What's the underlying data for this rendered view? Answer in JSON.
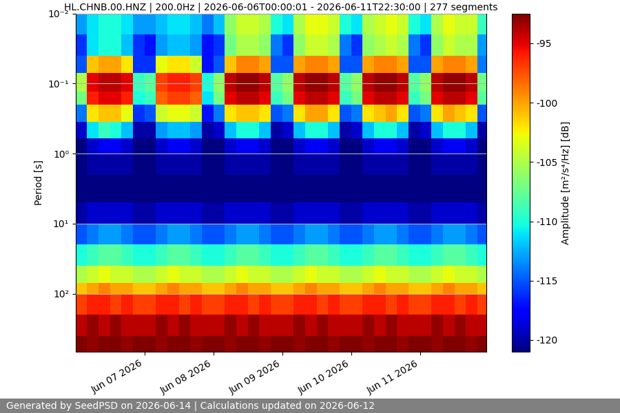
{
  "chart_data": {
    "type": "heatmap",
    "title": "HL.CHNB.00.HNZ | 200.0Hz | 2026-06-06T00:00:01 - 2026-06-11T22:30:00 | 277 segments",
    "y_label": "Period [s]",
    "footer": "Generated by SeedPSD on 2026-06-14 | Calculations updated on 2026-06-12",
    "log": "y",
    "grid": true,
    "xlim": [
      "2026-06-06T00:00",
      "2026-06-11T23:00"
    ],
    "xticks": [
      {
        "value": "2026-06-07T00:00",
        "label": "Jun 07 2026"
      },
      {
        "value": "2026-06-08T00:00",
        "label": "Jun 08 2026"
      },
      {
        "value": "2026-06-09T00:00",
        "label": "Jun 09 2026"
      },
      {
        "value": "2026-06-10T00:00",
        "label": "Jun 10 2026"
      },
      {
        "value": "2026-06-11T00:00",
        "label": "Jun 11 2026"
      }
    ],
    "ylim": [
      680,
      0.01
    ],
    "yticks": [
      {
        "value": 0.01,
        "label": "10⁻²"
      },
      {
        "value": 0.1,
        "label": "10⁻¹"
      },
      {
        "value": 1,
        "label": "10⁰"
      },
      {
        "value": 10,
        "label": "10¹"
      },
      {
        "value": 100,
        "label": "10²"
      }
    ],
    "x_edges": [
      "2026-06-06T00:00",
      "2026-06-06T04:00",
      "2026-06-06T08:00",
      "2026-06-06T12:00",
      "2026-06-06T16:00",
      "2026-06-06T20:00",
      "2026-06-07T00:00",
      "2026-06-07T04:00",
      "2026-06-07T08:00",
      "2026-06-07T12:00",
      "2026-06-07T16:00",
      "2026-06-07T20:00",
      "2026-06-08T00:00",
      "2026-06-08T04:00",
      "2026-06-08T08:00",
      "2026-06-08T12:00",
      "2026-06-08T16:00",
      "2026-06-08T20:00",
      "2026-06-09T00:00",
      "2026-06-09T04:00",
      "2026-06-09T08:00",
      "2026-06-09T12:00",
      "2026-06-09T16:00",
      "2026-06-09T20:00",
      "2026-06-10T00:00",
      "2026-06-10T04:00",
      "2026-06-10T08:00",
      "2026-06-10T12:00",
      "2026-06-10T16:00",
      "2026-06-10T20:00",
      "2026-06-11T00:00",
      "2026-06-11T04:00",
      "2026-06-11T08:00",
      "2026-06-11T12:00",
      "2026-06-11T16:00",
      "2026-06-11T20:00",
      "2026-06-12T00:00"
    ],
    "y_edges": [
      0.01,
      0.02,
      0.04,
      0.07,
      0.13,
      0.2,
      0.35,
      0.6,
      1,
      2,
      5,
      10,
      20,
      40,
      70,
      100,
      200,
      400,
      700
    ],
    "cells": [
      [
        -113,
        -111,
        -110,
        -110,
        -111,
        -113,
        -113,
        -112,
        -111,
        -111,
        -112,
        -114,
        -112,
        -106,
        -104,
        -104,
        -105,
        -110,
        -111,
        -105,
        -103,
        -103,
        -104,
        -110,
        -111,
        -105,
        -104,
        -103,
        -104,
        -110,
        -111,
        -105,
        -103,
        -104,
        -104,
        -109
      ],
      [
        -116,
        -111,
        -110,
        -110,
        -112,
        -116,
        -117,
        -113,
        -112,
        -112,
        -113,
        -117,
        -116,
        -107,
        -105,
        -105,
        -106,
        -114,
        -116,
        -106,
        -104,
        -104,
        -105,
        -114,
        -116,
        -106,
        -105,
        -104,
        -105,
        -114,
        -116,
        -106,
        -104,
        -105,
        -105,
        -113
      ],
      [
        -115,
        -101,
        -100,
        -100,
        -102,
        -116,
        -116,
        -103,
        -102,
        -102,
        -104,
        -117,
        -115,
        -101,
        -99,
        -99,
        -100,
        -115,
        -115,
        -100,
        -99,
        -99,
        -100,
        -115,
        -115,
        -100,
        -99,
        -99,
        -100,
        -115,
        -115,
        -100,
        -99,
        -99,
        -100,
        -114
      ],
      [
        -105,
        -95,
        -94,
        -94,
        -95,
        -109,
        -108,
        -97,
        -96,
        -96,
        -97,
        -110,
        -106,
        -94,
        -93,
        -93,
        -94,
        -108,
        -106,
        -94,
        -93,
        -93,
        -94,
        -108,
        -106,
        -94,
        -93,
        -93,
        -94,
        -108,
        -106,
        -94,
        -93,
        -93,
        -94,
        -107
      ],
      [
        -107,
        -96,
        -95,
        -95,
        -96,
        -110,
        -109,
        -98,
        -97,
        -97,
        -98,
        -111,
        -107,
        -95,
        -94,
        -94,
        -95,
        -109,
        -107,
        -95,
        -94,
        -94,
        -95,
        -109,
        -107,
        -95,
        -94,
        -94,
        -95,
        -109,
        -107,
        -95,
        -94,
        -94,
        -95,
        -108
      ],
      [
        -114,
        -102,
        -101,
        -101,
        -103,
        -116,
        -115,
        -104,
        -103,
        -103,
        -104,
        -117,
        -114,
        -102,
        -101,
        -101,
        -102,
        -115,
        -114,
        -102,
        -100,
        -100,
        -102,
        -115,
        -114,
        -102,
        -101,
        -100,
        -102,
        -115,
        -114,
        -102,
        -100,
        -101,
        -102,
        -115
      ],
      [
        -119,
        -111,
        -109,
        -110,
        -112,
        -120,
        -120,
        -113,
        -112,
        -112,
        -113,
        -120,
        -119,
        -112,
        -110,
        -110,
        -112,
        -120,
        -119,
        -112,
        -110,
        -110,
        -112,
        -120,
        -119,
        -112,
        -110,
        -110,
        -112,
        -120,
        -119,
        -112,
        -110,
        -110,
        -112,
        -120
      ],
      [
        -121,
        -119,
        -118,
        -118,
        -119,
        -121,
        -121,
        -119,
        -118,
        -118,
        -119,
        -121,
        -121,
        -119,
        -118,
        -118,
        -119,
        -121,
        -121,
        -119,
        -118,
        -118,
        -119,
        -121,
        -121,
        -119,
        -118,
        -118,
        -119,
        -121,
        -121,
        -119,
        -118,
        -118,
        -119,
        -121
      ],
      [
        -121,
        -120,
        -120,
        -120,
        -120,
        -121,
        -121,
        -120,
        -120,
        -120,
        -120,
        -121,
        -121,
        -120,
        -120,
        -120,
        -120,
        -121,
        -121,
        -120,
        -120,
        -120,
        -120,
        -121,
        -121,
        -120,
        -120,
        -120,
        -120,
        -121,
        -121,
        -120,
        -120,
        -120,
        -120,
        -121
      ],
      [
        -121,
        -121,
        -121,
        -121,
        -121,
        -121,
        -121,
        -121,
        -121,
        -121,
        -121,
        -121,
        -121,
        -121,
        -121,
        -121,
        -121,
        -121,
        -121,
        -121,
        -121,
        -121,
        -121,
        -121,
        -121,
        -121,
        -121,
        -121,
        -121,
        -121,
        -121,
        -121,
        -121,
        -121,
        -121,
        -121
      ],
      [
        -120,
        -119,
        -119,
        -119,
        -119,
        -120,
        -120,
        -119,
        -119,
        -119,
        -119,
        -120,
        -120,
        -119,
        -119,
        -119,
        -119,
        -120,
        -120,
        -119,
        -119,
        -119,
        -119,
        -120,
        -120,
        -119,
        -119,
        -119,
        -119,
        -120,
        -120,
        -119,
        -119,
        -119,
        -119,
        -120
      ],
      [
        -115,
        -114,
        -113,
        -113,
        -114,
        -115,
        -115,
        -114,
        -113,
        -113,
        -114,
        -115,
        -115,
        -114,
        -113,
        -113,
        -114,
        -115,
        -115,
        -114,
        -113,
        -113,
        -114,
        -115,
        -115,
        -114,
        -113,
        -113,
        -114,
        -115,
        -115,
        -114,
        -113,
        -113,
        -114,
        -115
      ],
      [
        -110,
        -109,
        -108,
        -108,
        -109,
        -110,
        -110,
        -109,
        -108,
        -108,
        -109,
        -110,
        -110,
        -109,
        -108,
        -108,
        -109,
        -110,
        -110,
        -109,
        -108,
        -108,
        -109,
        -110,
        -110,
        -109,
        -108,
        -108,
        -109,
        -110,
        -110,
        -109,
        -108,
        -108,
        -109,
        -110
      ],
      [
        -105,
        -104,
        -103,
        -104,
        -104,
        -105,
        -105,
        -104,
        -103,
        -104,
        -104,
        -105,
        -105,
        -104,
        -103,
        -104,
        -104,
        -105,
        -105,
        -104,
        -103,
        -104,
        -104,
        -105,
        -105,
        -104,
        -103,
        -104,
        -104,
        -105,
        -105,
        -104,
        -103,
        -104,
        -104,
        -105
      ],
      [
        -101,
        -100,
        -99,
        -100,
        -100,
        -101,
        -101,
        -100,
        -99,
        -100,
        -100,
        -101,
        -101,
        -100,
        -99,
        -100,
        -100,
        -101,
        -101,
        -100,
        -99,
        -100,
        -100,
        -101,
        -101,
        -100,
        -99,
        -100,
        -100,
        -101,
        -101,
        -100,
        -99,
        -100,
        -100,
        -101
      ],
      [
        -97,
        -96,
        -96,
        -97,
        -96,
        -97,
        -97,
        -96,
        -96,
        -97,
        -96,
        -97,
        -97,
        -96,
        -96,
        -97,
        -96,
        -97,
        -97,
        -96,
        -96,
        -97,
        -96,
        -97,
        -97,
        -96,
        -96,
        -97,
        -96,
        -97,
        -97,
        -96,
        -96,
        -97,
        -96,
        -97
      ],
      [
        -94,
        -93,
        -94,
        -93,
        -94,
        -94,
        -94,
        -93,
        -94,
        -93,
        -94,
        -94,
        -94,
        -93,
        -94,
        -93,
        -94,
        -94,
        -94,
        -93,
        -94,
        -93,
        -94,
        -94,
        -94,
        -93,
        -94,
        -93,
        -94,
        -94,
        -94,
        -93,
        -94,
        -93,
        -94,
        -94
      ],
      [
        -92,
        -93,
        -92,
        -92,
        -93,
        -92,
        -92,
        -93,
        -92,
        -92,
        -93,
        -92,
        -92,
        -93,
        -92,
        -92,
        -93,
        -92,
        -92,
        -93,
        -92,
        -92,
        -93,
        -92,
        -92,
        -93,
        -92,
        -92,
        -93,
        -92,
        -92,
        -93,
        -92,
        -92,
        -93,
        -92
      ]
    ],
    "colorbar": {
      "label": "Amplitude [m²/s⁴/Hz] [dB]",
      "range": [
        -121,
        -92.5
      ],
      "ticks": [
        -95,
        -100,
        -105,
        -110,
        -115,
        -120
      ]
    }
  }
}
